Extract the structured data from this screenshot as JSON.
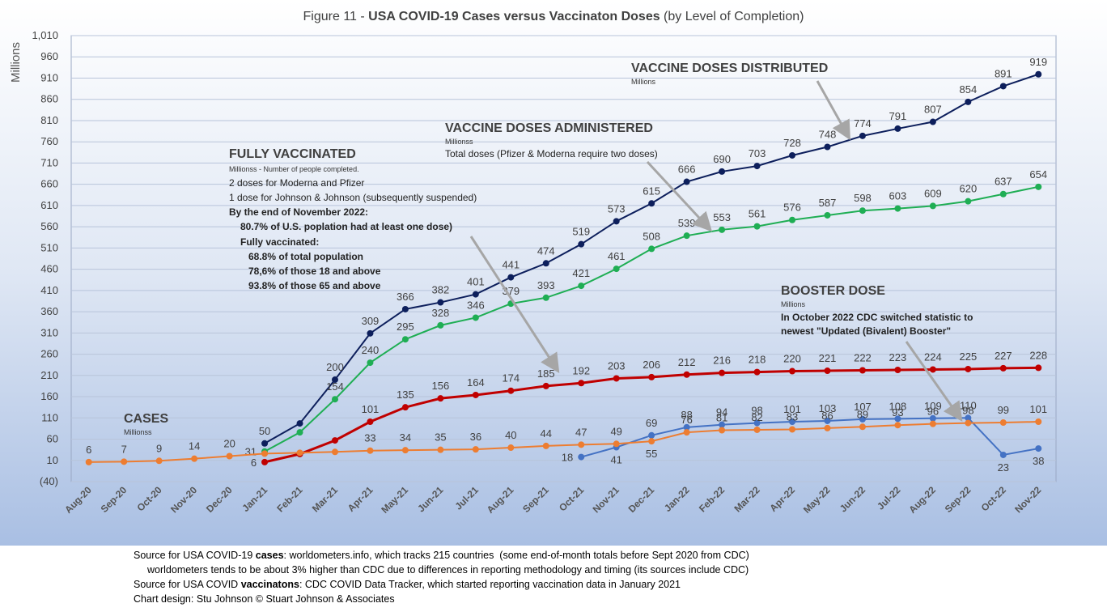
{
  "chart_data": {
    "type": "line",
    "title": [
      "Figure 11 - ",
      "USA COVID-19 Cases versus Vaccinaton Doses",
      " (by Level of Completion)"
    ],
    "y_label": "Millions",
    "categories": [
      "Aug-20",
      "Sep-20",
      "Oct-20",
      "Nov-20",
      "Dec-20",
      "Jan-21",
      "Feb-21",
      "Mar-21",
      "Apr-21",
      "May-21",
      "Jun-21",
      "Jul-21",
      "Aug-21",
      "Sep-21",
      "Oct-21",
      "Nov-21",
      "Dec-21",
      "Jan-22",
      "Feb-22",
      "Mar-22",
      "Apr-22",
      "May-22",
      "Jun-22",
      "Jul-22",
      "Aug-22",
      "Sep-22",
      "Oct-22",
      "Nov-22"
    ],
    "ylim": [
      -40,
      1010
    ],
    "yticks": [
      {
        "value": -40,
        "label": "(40)"
      },
      10,
      60,
      110,
      160,
      210,
      260,
      310,
      360,
      410,
      460,
      510,
      560,
      610,
      660,
      710,
      760,
      810,
      860,
      910,
      960,
      {
        "value": 1010,
        "label": "1,010"
      }
    ],
    "grid": true,
    "series": [
      {
        "name": "VACCINE DOSES DISTRIBUTED",
        "color": "#0d1f5c",
        "values": [
          null,
          null,
          null,
          null,
          null,
          50,
          97,
          200,
          309,
          366,
          382,
          401,
          441,
          474,
          519,
          573,
          615,
          666,
          690,
          703,
          728,
          748,
          774,
          791,
          807,
          854,
          891,
          919
        ],
        "value_labels": [
          null,
          null,
          null,
          null,
          null,
          "50",
          null,
          "200",
          "309",
          "366",
          "382",
          "401",
          "441",
          "474",
          "519",
          "573",
          "615",
          "666",
          "690",
          "703",
          "728",
          "748",
          "774",
          "791",
          "807",
          "854",
          "891",
          "919"
        ]
      },
      {
        "name": "VACCINE DOSES ADMINISTERED",
        "color": "#1fae54",
        "values": [
          null,
          null,
          null,
          null,
          null,
          31,
          76,
          154,
          240,
          295,
          328,
          346,
          379,
          393,
          421,
          461,
          508,
          539,
          553,
          561,
          576,
          587,
          598,
          603,
          609,
          620,
          637,
          654
        ],
        "value_labels": [
          null,
          null,
          null,
          null,
          null,
          "31",
          null,
          "154",
          "240",
          "295",
          "328",
          "346",
          "379",
          "393",
          "421",
          "461",
          "508",
          "539",
          "553",
          "561",
          "576",
          "587",
          "598",
          "603",
          "609",
          "620",
          "637",
          "654"
        ]
      },
      {
        "name": "FULLY VACCINATED",
        "color": "#c00000",
        "values": [
          null,
          null,
          null,
          null,
          null,
          6,
          25,
          57,
          101,
          135,
          156,
          164,
          174,
          185,
          192,
          203,
          206,
          212,
          216,
          218,
          220,
          221,
          222,
          223,
          224,
          225,
          227,
          228
        ],
        "value_labels": [
          null,
          null,
          null,
          null,
          null,
          "6",
          null,
          null,
          "101",
          "135",
          "156",
          "164",
          "174",
          "185",
          "192",
          "203",
          "206",
          "212",
          "216",
          "218",
          "220",
          "221",
          "222",
          "223",
          "224",
          "225",
          "227",
          "228"
        ]
      },
      {
        "name": "BOOSTER DOSE",
        "color": "#4472c4",
        "values": [
          null,
          null,
          null,
          null,
          null,
          null,
          null,
          null,
          null,
          null,
          null,
          null,
          null,
          null,
          18,
          41,
          69,
          88,
          94,
          98,
          101,
          103,
          107,
          108,
          109,
          110,
          23,
          38
        ],
        "value_labels": [
          null,
          null,
          null,
          null,
          null,
          null,
          null,
          null,
          null,
          null,
          null,
          null,
          null,
          null,
          "18",
          "41",
          "69",
          "88",
          "94",
          "98",
          "101",
          "103",
          "107",
          "108",
          "109",
          "110",
          "23",
          "38"
        ]
      },
      {
        "name": "CASES",
        "color": "#ed7d31",
        "values": [
          6,
          7,
          9,
          14,
          20,
          26,
          28,
          30,
          33,
          34,
          35,
          36,
          40,
          44,
          47,
          49,
          55,
          76,
          81,
          82,
          83,
          86,
          89,
          93,
          96,
          98,
          99,
          101
        ],
        "value_labels": [
          "6",
          "7",
          "9",
          "14",
          "20",
          null,
          null,
          null,
          "33",
          "34",
          "35",
          "36",
          "40",
          "44",
          "47",
          "49",
          "55",
          "76",
          "81",
          "82",
          "83",
          "86",
          "89",
          "93",
          "96",
          "98",
          "99",
          "101"
        ]
      }
    ],
    "annotations": [
      {
        "lines": [
          "Millions"
        ]
      },
      {
        "lines": [
          "Millionss",
          "Total doses (Pfizer & Moderna require two doses)"
        ]
      },
      {
        "lines": [
          "Millionss - Number of people completed.",
          "2 doses for Moderna and Pfizer",
          "1 dose for Johnson & Johnson (subsequently suspended)",
          "By the end of November 2022:",
          "80.7% of U.S. poplation had at least one dose)",
          "Fully vaccinated:",
          "68.8% of total population",
          "78,6% of those 18 and above",
          "93.8% of those 65 and above"
        ]
      },
      {
        "lines": [
          "Millions",
          "In October 2022 CDC switched statistic to",
          "newest \"Updated (Bivalent) Booster\""
        ]
      },
      {
        "lines": [
          "Millionss"
        ]
      }
    ],
    "notes": [
      [
        "Source for USA COVID-19 ",
        "cases",
        ": worldometers.info, which tracks 215 countries  (some end-of-month totals before Sept 2020 from CDC)"
      ],
      [
        "worldometers tends to be about 3% higher than CDC due to differences in reporting methodology and timing (its sources include CDC)"
      ],
      [
        "Source for USA COVID ",
        "vaccinatons",
        ": CDC COVID Data Tracker, which started reporting vaccination data in January 2021"
      ],
      [
        "Chart design: Stu Johnson © Stuart Johnson & Associates"
      ]
    ]
  }
}
